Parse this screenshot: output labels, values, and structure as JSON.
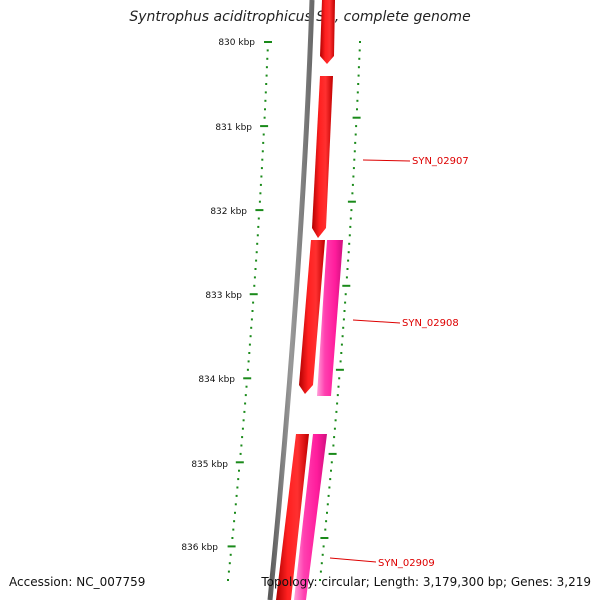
{
  "title": "Syntrophus aciditrophicus SB, complete genome",
  "accession_label": "Accession: NC_007759",
  "summary_label": "Topology: circular; Length: 3,179,300 bp; Genes: 3,219",
  "kbp_ticks": [
    "830 kbp",
    "831 kbp",
    "832 kbp",
    "833 kbp",
    "834 kbp",
    "835 kbp",
    "836 kbp"
  ],
  "genes": [
    {
      "label": "SYN_02907",
      "color": "#ff0000",
      "strand": "forward"
    },
    {
      "label": "SYN_02908",
      "color": "#ff2aa0",
      "strand": "reverse"
    },
    {
      "label": "SYN_02909",
      "color": "#ff2aa0",
      "strand": "reverse"
    }
  ],
  "colors": {
    "backbone": "#808080",
    "forward_gene": "#ff0000",
    "reverse_gene": "#ff2aa0",
    "tick": "#1a8a1a",
    "label": "#dd0000"
  }
}
